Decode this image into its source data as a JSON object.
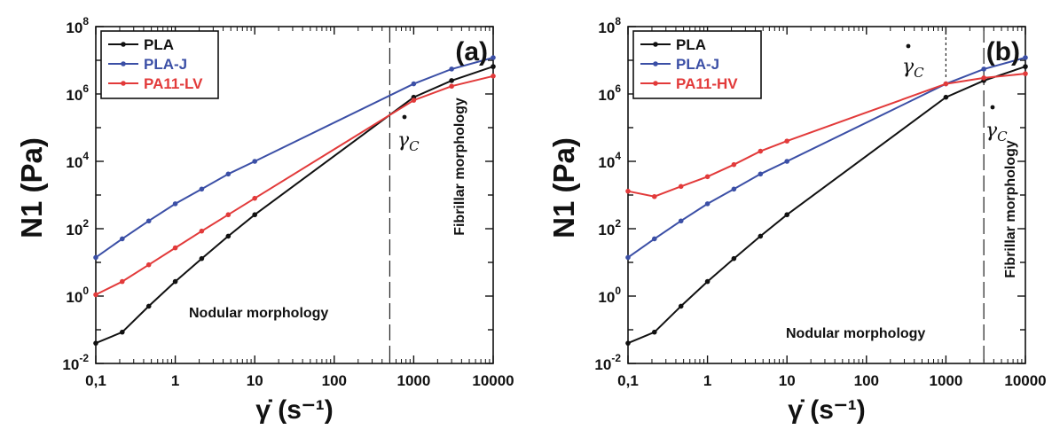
{
  "chart_data": [
    {
      "type": "line",
      "panel_label": "(a)",
      "xlabel": "γ̇ (s⁻¹)",
      "ylabel": "N1  (Pa)",
      "x_scale": "log",
      "y_scale": "log",
      "xlim": [
        0.1,
        10000
      ],
      "ylim": [
        0.01,
        100000000
      ],
      "x_tick_labels": [
        "0,1",
        "1",
        "10",
        "100",
        "1000",
        "10000"
      ],
      "y_tick_labels": [
        {
          "base": "10",
          "exp": "-2"
        },
        {
          "base": "10",
          "exp": "0"
        },
        {
          "base": "10",
          "exp": "2"
        },
        {
          "base": "10",
          "exp": "4"
        },
        {
          "base": "10",
          "exp": "6"
        },
        {
          "base": "10",
          "exp": "8"
        }
      ],
      "legend_position": "top-left",
      "series": [
        {
          "name": "PLA",
          "color": "#111111",
          "x": [
            0.1,
            0.215,
            0.464,
            1,
            2.15,
            4.64,
            10,
            1000,
            3000,
            10000
          ],
          "y": [
            0.04,
            0.085,
            0.5,
            2.7,
            13,
            60,
            260,
            800000,
            2500000,
            6500000
          ]
        },
        {
          "name": "PLA-J",
          "color": "#3b4fa6",
          "x": [
            0.1,
            0.215,
            0.464,
            1,
            2.15,
            4.64,
            10,
            1000,
            3000,
            10000
          ],
          "y": [
            14,
            50,
            170,
            550,
            1500,
            4200,
            10000,
            2000000,
            5500000,
            12000000
          ]
        },
        {
          "name": "PA11-LV",
          "color": "#e23a3a",
          "x": [
            0.1,
            0.215,
            0.464,
            1,
            2.15,
            4.64,
            10,
            1000,
            3000,
            10000
          ],
          "y": [
            1.1,
            2.7,
            8.5,
            27,
            85,
            260,
            800,
            650000,
            1700000,
            3400000
          ]
        }
      ],
      "annotations": [
        {
          "text": "Nodular morphology"
        },
        {
          "text": "Fibrillar morphology"
        },
        {
          "text": "γC",
          "x": 720
        }
      ],
      "vlines": [
        {
          "x": 500,
          "style": "long-dash"
        }
      ]
    },
    {
      "type": "line",
      "panel_label": "(b)",
      "xlabel": "γ̇ (s⁻¹)",
      "ylabel": "N1  (Pa)",
      "x_scale": "log",
      "y_scale": "log",
      "xlim": [
        0.1,
        10000
      ],
      "ylim": [
        0.01,
        100000000
      ],
      "x_tick_labels": [
        "0,1",
        "1",
        "10",
        "100",
        "1000",
        "10000"
      ],
      "y_tick_labels": [
        {
          "base": "10",
          "exp": "-2"
        },
        {
          "base": "10",
          "exp": "0"
        },
        {
          "base": "10",
          "exp": "2"
        },
        {
          "base": "10",
          "exp": "4"
        },
        {
          "base": "10",
          "exp": "6"
        },
        {
          "base": "10",
          "exp": "8"
        }
      ],
      "legend_position": "top-left",
      "series": [
        {
          "name": "PLA",
          "color": "#111111",
          "x": [
            0.1,
            0.215,
            0.464,
            1,
            2.15,
            4.64,
            10,
            1000,
            3000,
            10000
          ],
          "y": [
            0.04,
            0.085,
            0.5,
            2.7,
            13,
            60,
            260,
            800000,
            2500000,
            6500000
          ]
        },
        {
          "name": "PLA-J",
          "color": "#3b4fa6",
          "x": [
            0.1,
            0.215,
            0.464,
            1,
            2.15,
            4.64,
            10,
            1000,
            3000,
            10000
          ],
          "y": [
            14,
            50,
            170,
            550,
            1500,
            4200,
            10000,
            2000000,
            5500000,
            12000000
          ]
        },
        {
          "name": "PA11-HV",
          "color": "#e23a3a",
          "x": [
            0.1,
            0.215,
            0.464,
            1,
            2.15,
            4.64,
            10,
            1000,
            3000,
            10000
          ],
          "y": [
            1300,
            900,
            1800,
            3500,
            8000,
            20000,
            40000,
            2000000,
            3000000,
            4000000
          ]
        }
      ],
      "annotations": [
        {
          "text": "Nodular morphology"
        },
        {
          "text": "Fibrillar morphology"
        },
        {
          "text": "γC",
          "x": 800
        },
        {
          "text": "γC",
          "x": 3600
        }
      ],
      "vlines": [
        {
          "x": 1000,
          "style": "short-dash",
          "y_from": 3000000,
          "y_to": 100000000
        },
        {
          "x": 3000,
          "style": "long-dash"
        }
      ]
    }
  ]
}
